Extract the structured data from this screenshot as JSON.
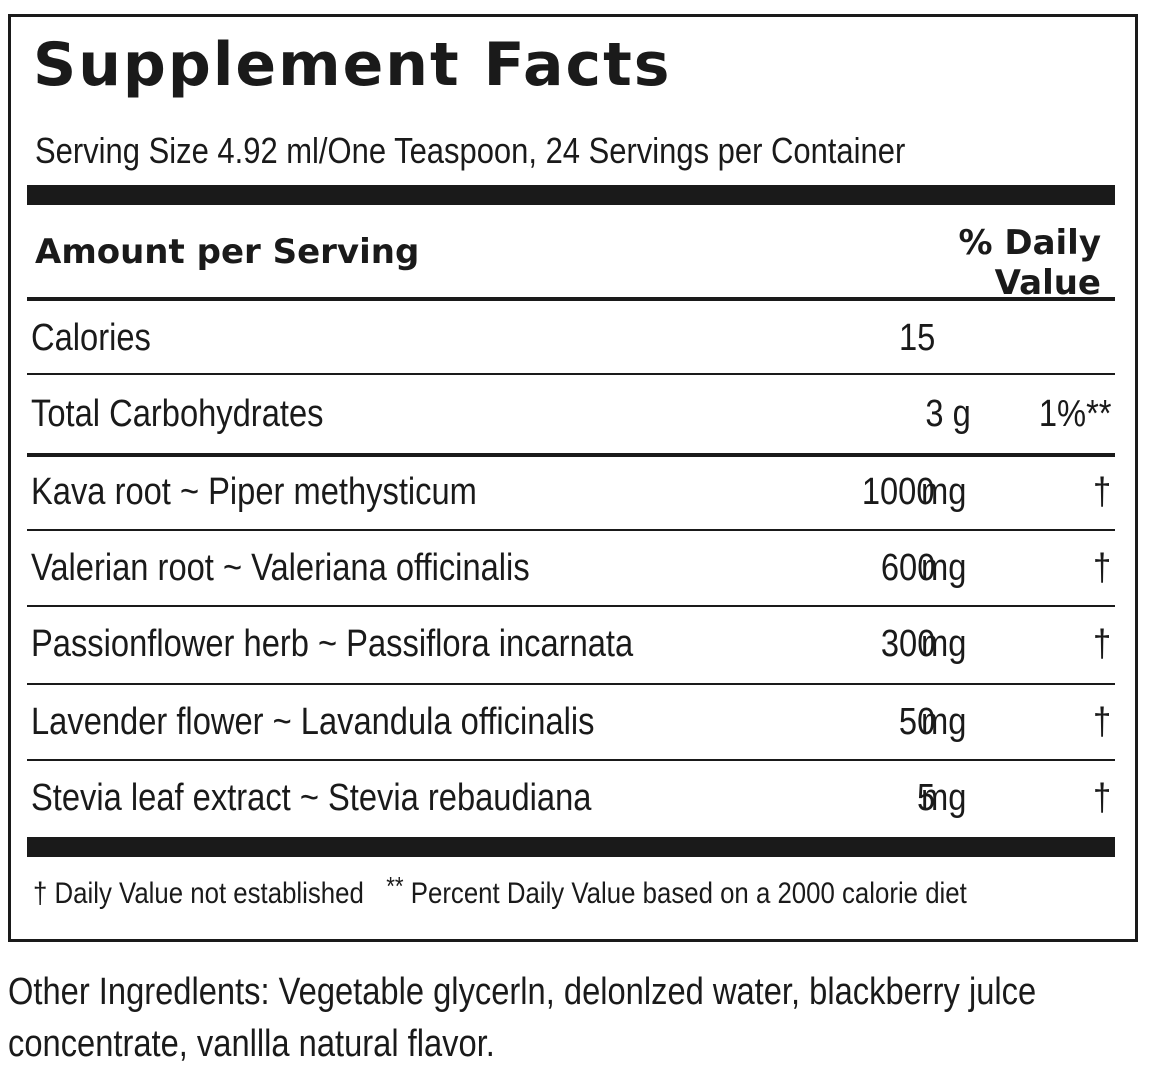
{
  "panel": {
    "title": "Supplement Facts",
    "serving": "Serving Size 4.92 ml/One Teaspoon, 24 Servings per Container",
    "header": {
      "amount_label": "Amount per Serving",
      "dv_line1": "% Daily",
      "dv_line2": "Value"
    },
    "calories": {
      "name": "Calories",
      "amount": "15"
    },
    "carbs": {
      "name": "Total Carbohydrates",
      "amount": "3 g",
      "dv": "1%**"
    },
    "ingredients": [
      {
        "name": "Kava root ~ Piper methysticum",
        "amount": "1000",
        "unit": "mg",
        "dv": "†"
      },
      {
        "name": "Valerian root ~ Valeriana officinalis",
        "amount": "600",
        "unit": "mg",
        "dv": "†"
      },
      {
        "name": "Passionflower herb ~ Passiflora incarnata",
        "amount": "300",
        "unit": "mg",
        "dv": "†"
      },
      {
        "name": "Lavender flower ~ Lavandula officinalis",
        "amount": "50",
        "unit": "mg",
        "dv": "†"
      },
      {
        "name": "Stevia leaf extract ~ Stevia rebaudiana",
        "amount": "5",
        "unit": "mg",
        "dv": "†"
      }
    ],
    "footnote": {
      "dagger": "† Daily Value not established",
      "stars": "**",
      "percent": "Percent Daily Value based on a 2000 calorie diet"
    }
  },
  "other_ingredients": "Other Ingredlents: Vegetable glycerln, delonlzed water, blackberry julce concentrate, vanllla natural flavor."
}
